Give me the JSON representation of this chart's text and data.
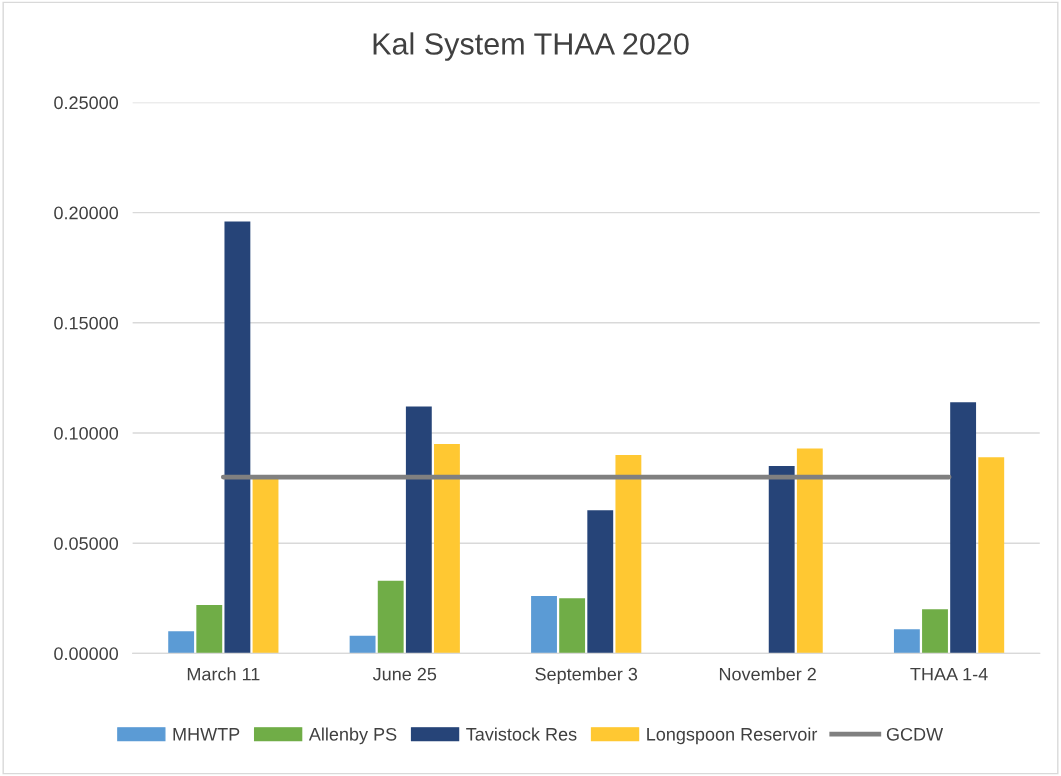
{
  "chart_data": {
    "type": "bar",
    "title": "Kal System THAA 2020",
    "categories": [
      "March 11",
      "June 25",
      "September 3",
      "November 2",
      "THAA 1-4"
    ],
    "series": [
      {
        "name": "MHWTP",
        "color": "#5b9bd5",
        "values": [
          0.01,
          0.008,
          0.026,
          null,
          0.011
        ]
      },
      {
        "name": "Allenby PS",
        "color": "#70ad47",
        "values": [
          0.022,
          0.033,
          0.025,
          null,
          0.02
        ]
      },
      {
        "name": "Tavistock Res",
        "color": "#264478",
        "values": [
          0.196,
          0.112,
          0.065,
          0.085,
          0.114
        ]
      },
      {
        "name": "Longspoon Reservoir",
        "color": "#ffc832",
        "values": [
          0.08,
          0.095,
          0.09,
          0.093,
          0.089
        ]
      },
      {
        "name": "GCDW",
        "color": "#808080",
        "type": "line",
        "values": [
          0.08,
          0.08,
          0.08,
          0.08,
          0.08
        ]
      }
    ],
    "ylim": [
      0,
      0.25
    ],
    "yticks": [
      {
        "value": 0,
        "label": "0.00000"
      },
      {
        "value": 0.05,
        "label": "0.05000"
      },
      {
        "value": 0.1,
        "label": "0.10000"
      },
      {
        "value": 0.15,
        "label": "0.15000"
      },
      {
        "value": 0.2,
        "label": "0.20000"
      },
      {
        "value": 0.25,
        "label": "0.25000"
      }
    ],
    "grid": "y",
    "legend": "bottom"
  }
}
